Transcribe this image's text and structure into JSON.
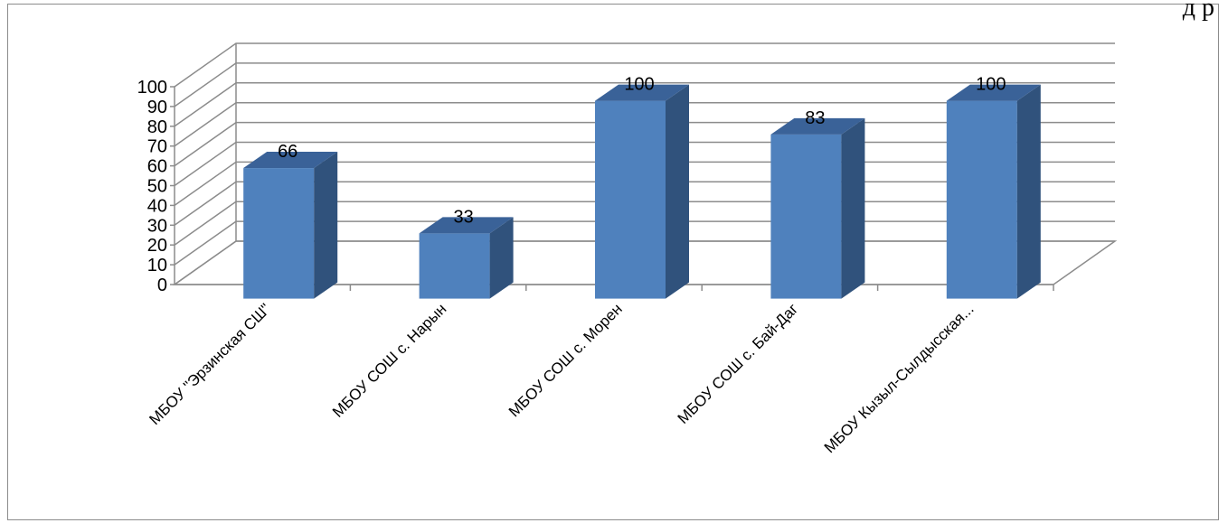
{
  "header": {
    "corner_text": "д р"
  },
  "chart_data": {
    "type": "bar",
    "title": "",
    "xlabel": "",
    "ylabel": "",
    "ylim": [
      0,
      100
    ],
    "ytick_step": 10,
    "grid": true,
    "legend": "none",
    "three_d": true,
    "bar_color": "#4f81bd",
    "bar_side_color": "#30527c",
    "bar_top_color": "#3a6298",
    "categories": [
      "МБОУ \"Эрзинская СШ\"",
      "МБОУ СОШ с. Нарын",
      "МБОУ СОШ с. Морен",
      "МБОУ СОШ с. Бай-Даг",
      "МБОУ Кызыл-Сылдысская..."
    ],
    "values": [
      66,
      33,
      100,
      83,
      100
    ]
  }
}
